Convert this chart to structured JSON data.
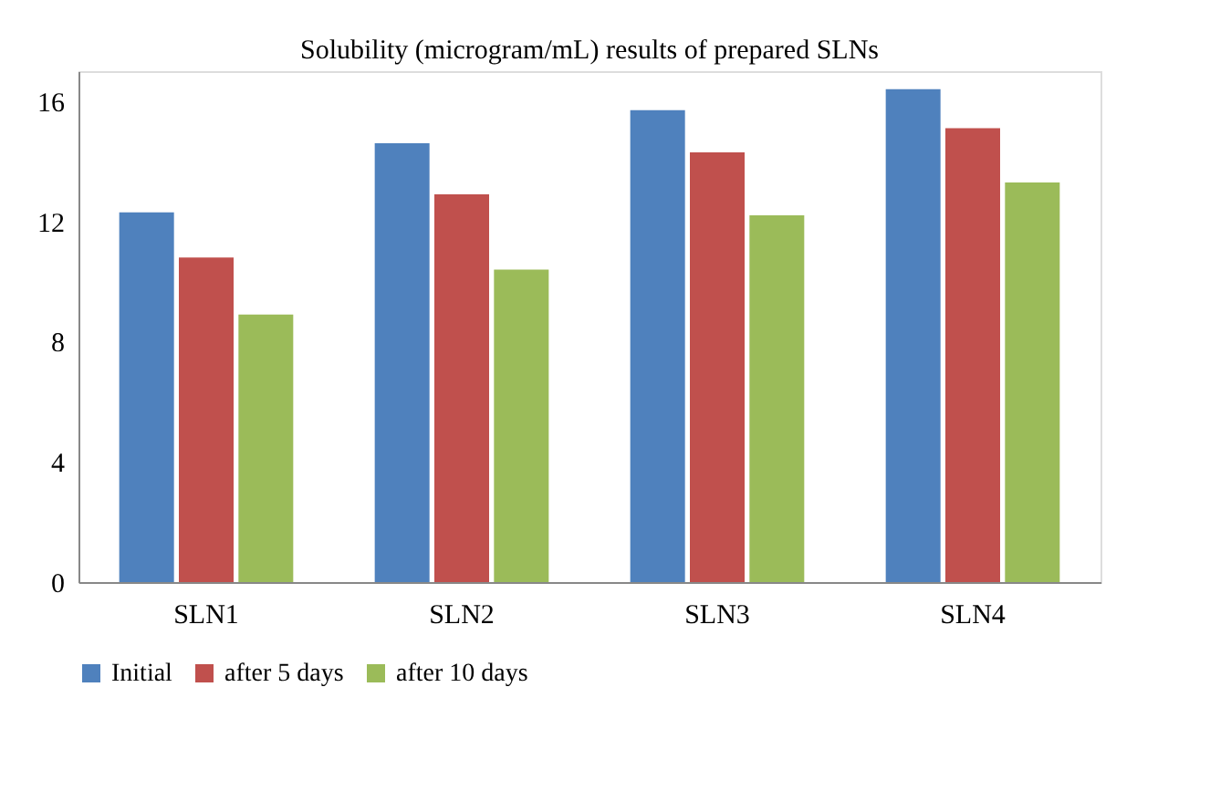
{
  "chart_data": {
    "type": "bar",
    "title": "Solubility (microgram/mL) results of prepared SLNs",
    "categories": [
      "SLN1",
      "SLN2",
      "SLN3",
      "SLN4"
    ],
    "series": [
      {
        "name": "Initial",
        "color": "#4f81bd",
        "values": [
          12.3,
          14.6,
          15.7,
          16.4
        ]
      },
      {
        "name": "after 5 days",
        "color": "#c0504d",
        "values": [
          10.8,
          12.9,
          14.3,
          15.1
        ]
      },
      {
        "name": "after 10 days",
        "color": "#9bbb59",
        "values": [
          8.9,
          10.4,
          12.2,
          13.3
        ]
      }
    ],
    "ylim": [
      0,
      17
    ],
    "yticks": [
      0,
      4,
      8,
      12,
      16
    ],
    "grid": false,
    "legend": "bottom"
  }
}
